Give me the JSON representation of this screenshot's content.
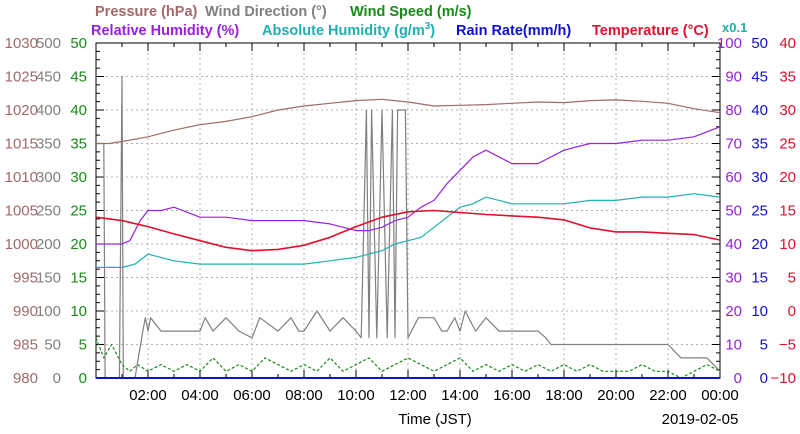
{
  "chart_data": {
    "type": "line",
    "date_label": "2019-02-05",
    "xlabel": "Time (JST)",
    "x_ticks": [
      "02:00",
      "04:00",
      "06:00",
      "08:00",
      "10:00",
      "12:00",
      "14:00",
      "16:00",
      "18:00",
      "20:00",
      "22:00",
      "00:00"
    ],
    "x_range_hours": [
      0,
      24
    ],
    "grid": true,
    "legend": {
      "row1": [
        {
          "key": "pressure",
          "text": "Pressure (hPa)",
          "color": "#a06a6a"
        },
        {
          "key": "wind_dir",
          "text": "Wind Direction (°)",
          "color": "#808080"
        },
        {
          "key": "wind_speed",
          "text": "Wind Speed (m/s)",
          "color": "#1a8a1a"
        }
      ],
      "row2": [
        {
          "key": "rh",
          "text": "Relative Humidity (%)",
          "color": "#9a20e0"
        },
        {
          "key": "ah",
          "text": "Absolute Humidity (g/m",
          "sup": "3",
          "tail": ")",
          "color": "#20b0b0"
        },
        {
          "key": "rain",
          "text": "Rain Rate(mm/h)",
          "color": "#1010d0"
        },
        {
          "key": "temp",
          "text": "Temperature (°C)",
          "color": "#e01030"
        }
      ],
      "ah_multiplier": "x0.1"
    },
    "axes": {
      "pressure": {
        "ticks": [
          "980",
          "985",
          "990",
          "995",
          "1000",
          "1005",
          "1010",
          "1015",
          "1020",
          "1025",
          "1030"
        ],
        "range": [
          980,
          1030
        ],
        "color": "#a06a6a"
      },
      "wind_dir": {
        "ticks": [
          "0",
          "50",
          "100",
          "150",
          "200",
          "250",
          "300",
          "350",
          "400",
          "450",
          "500"
        ],
        "range": [
          0,
          500
        ],
        "color": "#808080"
      },
      "wind_speed": {
        "ticks": [
          "0",
          "5",
          "10",
          "15",
          "20",
          "25",
          "30",
          "35",
          "40",
          "45",
          "50"
        ],
        "range": [
          0,
          50
        ],
        "color": "#1a8a1a"
      },
      "rh": {
        "ticks": [
          "0",
          "10",
          "20",
          "30",
          "40",
          "50",
          "60",
          "70",
          "80",
          "90",
          "100"
        ],
        "range": [
          0,
          100
        ],
        "color": "#9a20e0"
      },
      "rain": {
        "ticks": [
          "0",
          "5",
          "10",
          "15",
          "20",
          "25",
          "30",
          "35",
          "40",
          "45",
          "50"
        ],
        "range": [
          0,
          50
        ],
        "color": "#1010d0"
      },
      "temp": {
        "ticks": [
          "−10",
          "−5",
          "0",
          "5",
          "10",
          "15",
          "20",
          "25",
          "30",
          "35",
          "40"
        ],
        "range": [
          -10,
          40
        ],
        "color": "#e01030"
      }
    },
    "series": [
      {
        "name": "Pressure (hPa)",
        "key": "pressure",
        "color": "#a06a6a",
        "x": [
          0,
          0.5,
          1,
          2,
          3,
          4,
          5,
          6,
          7,
          8,
          9,
          10,
          11,
          12,
          13,
          14,
          15,
          16,
          17,
          18,
          19,
          20,
          21,
          22,
          23,
          24
        ],
        "y": [
          1015,
          1015,
          1015.3,
          1016,
          1017,
          1017.8,
          1018.3,
          1019,
          1020,
          1020.6,
          1021,
          1021.4,
          1021.6,
          1021.2,
          1020.6,
          1020.7,
          1020.8,
          1021,
          1021.2,
          1021.1,
          1021.4,
          1021.5,
          1021.3,
          1021,
          1020.2,
          1019.6
        ]
      },
      {
        "name": "Relative Humidity (%)",
        "key": "rh",
        "color": "#9a20e0",
        "x": [
          0,
          1,
          1.3,
          1.7,
          2,
          2.5,
          3,
          4,
          5,
          6,
          7,
          8,
          9,
          10,
          10.5,
          11,
          11.5,
          12,
          12.5,
          13,
          13.5,
          14,
          14.5,
          15,
          15.5,
          16,
          17,
          18,
          19,
          20,
          21,
          22,
          23,
          24
        ],
        "y": [
          40,
          40,
          41,
          47,
          50,
          50,
          51,
          48,
          48,
          47,
          47,
          47,
          46,
          44,
          44,
          45,
          47,
          48,
          51,
          53,
          58,
          62,
          66,
          68,
          66,
          64,
          64,
          68,
          70,
          70,
          71,
          71,
          72,
          75
        ]
      },
      {
        "name": "Absolute Humidity (g/m3) x0.1",
        "key": "ah",
        "color": "#20b0b0",
        "x": [
          0,
          1,
          1.5,
          2,
          3,
          4,
          5,
          6,
          7,
          8,
          9,
          10,
          11,
          11.5,
          12,
          12.5,
          13,
          13.5,
          14,
          14.5,
          15,
          15.5,
          16,
          17,
          18,
          19,
          20,
          21,
          22,
          23,
          24
        ],
        "y": [
          33,
          33,
          34,
          37,
          35,
          34,
          34,
          34,
          34,
          34,
          35,
          36,
          38,
          40,
          41,
          42,
          45,
          48,
          51,
          52,
          54,
          53,
          52,
          52,
          52,
          53,
          53,
          54,
          54,
          55,
          54
        ]
      },
      {
        "name": "Temperature (°C)",
        "key": "temp",
        "color": "#e01030",
        "x": [
          0,
          1,
          2,
          3,
          4,
          5,
          6,
          7,
          8,
          9,
          10,
          11,
          12,
          13,
          14,
          15,
          16,
          17,
          18,
          19,
          20,
          21,
          22,
          23,
          24
        ],
        "y": [
          14,
          13.5,
          12.6,
          11.5,
          10.5,
          9.5,
          9,
          9.2,
          9.8,
          11,
          12.6,
          14,
          14.8,
          15,
          14.7,
          14.4,
          14.2,
          14,
          13.6,
          12.4,
          11.8,
          11.8,
          11.6,
          11.4,
          10.6
        ]
      },
      {
        "name": "Wind Direction (°)",
        "key": "wind_dir",
        "color": "#808080",
        "x": [
          0,
          0.15,
          0.3,
          0.35,
          0.9,
          1,
          1.05,
          1.2,
          1.5,
          1.8,
          1.9,
          2,
          2.1,
          2.5,
          3,
          3.5,
          4,
          4.2,
          4.5,
          5,
          5.5,
          6,
          6.3,
          7,
          7.5,
          7.8,
          8,
          8.5,
          9,
          9.5,
          10,
          10.2,
          10.4,
          10.5,
          10.6,
          10.8,
          11,
          11.2,
          11.4,
          11.5,
          11.6,
          11.9,
          12,
          12.4,
          12.6,
          13,
          13.3,
          13.5,
          13.8,
          14,
          14.2,
          14.6,
          15,
          15.5,
          16,
          16.5,
          17,
          17.3,
          17.5,
          18,
          19,
          20,
          21,
          21.5,
          22,
          22.5,
          23,
          23.5,
          24
        ],
        "y": [
          350,
          350,
          350,
          0,
          0,
          450,
          0,
          0,
          0,
          70,
          90,
          70,
          90,
          70,
          70,
          70,
          70,
          90,
          70,
          90,
          70,
          60,
          90,
          70,
          90,
          70,
          70,
          100,
          70,
          90,
          70,
          60,
          400,
          60,
          400,
          60,
          400,
          60,
          400,
          60,
          400,
          400,
          60,
          90,
          90,
          90,
          70,
          70,
          90,
          70,
          100,
          70,
          90,
          70,
          70,
          70,
          70,
          60,
          50,
          50,
          50,
          50,
          50,
          50,
          50,
          30,
          30,
          30,
          10
        ]
      },
      {
        "name": "Wind Speed (m/s)",
        "key": "wind_speed",
        "color": "#1a8a1a",
        "x": [
          0,
          0.3,
          0.6,
          1,
          1.3,
          1.6,
          2,
          2.5,
          3,
          3.5,
          4,
          4.5,
          5,
          5.5,
          6,
          6.5,
          7,
          7.5,
          8,
          8.5,
          9,
          9.5,
          10,
          10.5,
          11,
          11.5,
          12,
          12.5,
          13,
          13.5,
          14,
          14.5,
          15,
          15.5,
          16,
          16.5,
          17,
          17.5,
          18,
          18.5,
          19,
          19.5,
          20,
          20.5,
          21,
          21.5,
          22,
          22.5,
          23,
          23.5,
          24
        ],
        "y": [
          6,
          3,
          5,
          2,
          1,
          2,
          1,
          2,
          1,
          2,
          1,
          3,
          1,
          2,
          1,
          3,
          2,
          1,
          2,
          1,
          3,
          1,
          2,
          3,
          1,
          2,
          3,
          2,
          1,
          2,
          3,
          1,
          2,
          1,
          2,
          1,
          2,
          1,
          2,
          1,
          2,
          1,
          1,
          1,
          2,
          1,
          1,
          0,
          1,
          2,
          1
        ]
      },
      {
        "name": "Rain Rate(mm/h)",
        "key": "rain",
        "color": "#1010d0",
        "x": [
          0,
          24
        ],
        "y": [
          0,
          0
        ]
      }
    ]
  }
}
